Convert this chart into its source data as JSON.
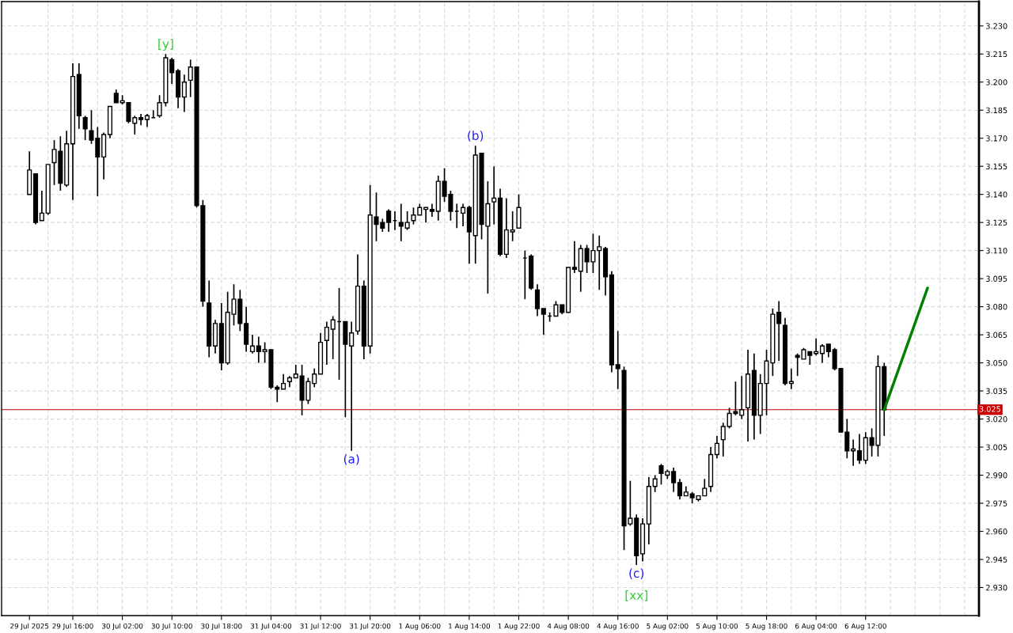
{
  "chart_data": {
    "type": "candlestick",
    "categories": [
      "29 Jul 2025",
      null,
      null,
      null,
      null,
      null,
      null,
      "29 Jul 16:00",
      null,
      null,
      null,
      null,
      null,
      null,
      null,
      "30 Jul 02:00",
      null,
      null,
      null,
      null,
      null,
      null,
      null,
      "30 Jul 10:00",
      null,
      null,
      null,
      null,
      null,
      null,
      null,
      "30 Jul 18:00",
      null,
      null,
      null,
      null,
      null,
      null,
      null,
      "31 Jul 04:00",
      null,
      null,
      null,
      null,
      null,
      null,
      null,
      "31 Jul 12:00",
      null,
      null,
      null,
      null,
      null,
      null,
      null,
      "31 Jul 20:00",
      null,
      null,
      null,
      null,
      null,
      null,
      null,
      "1 Aug 06:00",
      null,
      null,
      null,
      null,
      null,
      null,
      null,
      "1 Aug 14:00",
      null,
      null,
      null,
      null,
      null,
      null,
      null,
      "1 Aug 22:00",
      null,
      null,
      null,
      null,
      null,
      null,
      null,
      "4 Aug 08:00",
      null,
      null,
      null,
      null,
      null,
      null,
      null,
      "4 Aug 16:00",
      null,
      null,
      null,
      null,
      null,
      null,
      null,
      "5 Aug 02:00",
      null,
      null,
      null,
      null,
      null,
      null,
      null,
      "5 Aug 10:00",
      null,
      null,
      null,
      null,
      null,
      null,
      null,
      "5 Aug 18:00",
      null,
      null,
      null,
      null,
      null,
      null,
      null,
      "6 Aug 04:00",
      null,
      null,
      null,
      null,
      null,
      null,
      null,
      "6 Aug 12:00",
      null,
      null,
      null,
      null,
      null,
      null,
      null,
      null,
      null,
      null,
      null,
      null,
      null,
      null,
      null,
      null,
      null,
      null
    ],
    "ohlc": [
      [
        3.14,
        3.163,
        3.14,
        3.153
      ],
      [
        3.151,
        3.151,
        3.124,
        3.125
      ],
      [
        3.126,
        3.142,
        3.126,
        3.13
      ],
      [
        3.13,
        3.156,
        3.129,
        3.156
      ],
      [
        3.157,
        3.169,
        3.145,
        3.164
      ],
      [
        3.163,
        3.171,
        3.142,
        3.146
      ],
      [
        3.145,
        3.174,
        3.144,
        3.167
      ],
      [
        3.167,
        3.21,
        3.137,
        3.203
      ],
      [
        3.204,
        3.21,
        3.175,
        3.182
      ],
      [
        3.181,
        3.182,
        3.169,
        3.175
      ],
      [
        3.174,
        3.185,
        3.167,
        3.169
      ],
      [
        3.17,
        3.176,
        3.139,
        3.16
      ],
      [
        3.16,
        3.173,
        3.148,
        3.172
      ],
      [
        3.172,
        3.187,
        3.17,
        3.187
      ],
      [
        3.194,
        3.196,
        3.189,
        3.189
      ],
      [
        3.189,
        3.193,
        3.188,
        3.19
      ],
      [
        3.189,
        3.189,
        3.178,
        3.179
      ],
      [
        3.178,
        3.182,
        3.172,
        3.181
      ],
      [
        3.181,
        3.183,
        3.177,
        3.18
      ],
      [
        3.18,
        3.183,
        3.176,
        3.182
      ],
      [
        3.181,
        3.185,
        3.181,
        3.181
      ],
      [
        3.182,
        3.193,
        3.181,
        3.189
      ],
      [
        3.189,
        3.215,
        3.187,
        3.213
      ],
      [
        3.212,
        3.213,
        3.199,
        3.205
      ],
      [
        3.206,
        3.207,
        3.186,
        3.192
      ],
      [
        3.192,
        3.204,
        3.184,
        3.2
      ],
      [
        3.201,
        3.212,
        3.192,
        3.208
      ],
      [
        3.208,
        3.208,
        3.133,
        3.134
      ],
      [
        3.134,
        3.137,
        3.08,
        3.083
      ],
      [
        3.082,
        3.094,
        3.053,
        3.059
      ],
      [
        3.059,
        3.073,
        3.055,
        3.071
      ],
      [
        3.071,
        3.082,
        3.046,
        3.05
      ],
      [
        3.05,
        3.088,
        3.049,
        3.077
      ],
      [
        3.076,
        3.092,
        3.07,
        3.084
      ],
      [
        3.084,
        3.089,
        3.067,
        3.071
      ],
      [
        3.071,
        3.08,
        3.056,
        3.06
      ],
      [
        3.056,
        3.065,
        3.055,
        3.059
      ],
      [
        3.059,
        3.064,
        3.05,
        3.056
      ],
      [
        3.056,
        3.061,
        3.05,
        3.057
      ],
      [
        3.057,
        3.057,
        3.036,
        3.037
      ],
      [
        3.037,
        3.038,
        3.029,
        3.036
      ],
      [
        3.036,
        3.044,
        3.036,
        3.039
      ],
      [
        3.04,
        3.043,
        3.037,
        3.042
      ],
      [
        3.042,
        3.049,
        3.042,
        3.044
      ],
      [
        3.043,
        3.049,
        3.022,
        3.03
      ],
      [
        3.03,
        3.042,
        3.028,
        3.04
      ],
      [
        3.039,
        3.047,
        3.037,
        3.044
      ],
      [
        3.044,
        3.066,
        3.044,
        3.061
      ],
      [
        3.062,
        3.072,
        3.049,
        3.069
      ],
      [
        3.068,
        3.075,
        3.052,
        3.073
      ],
      [
        3.072,
        3.09,
        3.041,
        3.072
      ],
      [
        3.072,
        3.072,
        3.021,
        3.06
      ],
      [
        3.059,
        3.072,
        3.003,
        3.066
      ],
      [
        3.067,
        3.108,
        3.065,
        3.091
      ],
      [
        3.091,
        3.094,
        3.052,
        3.059
      ],
      [
        3.059,
        3.145,
        3.055,
        3.129
      ],
      [
        3.128,
        3.141,
        3.115,
        3.124
      ],
      [
        3.125,
        3.127,
        3.12,
        3.122
      ],
      [
        3.131,
        3.132,
        3.12,
        3.125
      ],
      [
        3.126,
        3.131,
        3.121,
        3.126
      ],
      [
        3.125,
        3.135,
        3.115,
        3.123
      ],
      [
        3.122,
        3.131,
        3.121,
        3.125
      ],
      [
        3.126,
        3.133,
        3.124,
        3.129
      ],
      [
        3.129,
        3.135,
        3.129,
        3.133
      ],
      [
        3.132,
        3.133,
        3.125,
        3.133
      ],
      [
        3.132,
        3.135,
        3.128,
        3.131
      ],
      [
        3.131,
        3.15,
        3.126,
        3.147
      ],
      [
        3.147,
        3.154,
        3.136,
        3.139
      ],
      [
        3.14,
        3.142,
        3.126,
        3.131
      ],
      [
        3.131,
        3.135,
        3.122,
        3.131
      ],
      [
        3.13,
        3.135,
        3.123,
        3.133
      ],
      [
        3.133,
        3.134,
        3.103,
        3.12
      ],
      [
        3.118,
        3.166,
        3.103,
        3.161
      ],
      [
        3.162,
        3.162,
        3.116,
        3.124
      ],
      [
        3.123,
        3.147,
        3.087,
        3.135
      ],
      [
        3.136,
        3.155,
        3.124,
        3.138
      ],
      [
        3.138,
        3.143,
        3.107,
        3.108
      ],
      [
        3.108,
        3.138,
        3.106,
        3.121
      ],
      [
        3.12,
        3.131,
        3.115,
        3.121
      ],
      [
        3.122,
        3.14,
        3.122,
        3.133
      ],
      [
        3.106,
        3.11,
        3.084,
        3.106
      ],
      [
        3.107,
        3.108,
        3.089,
        3.09
      ],
      [
        3.089,
        3.092,
        3.075,
        3.079
      ],
      [
        3.079,
        3.079,
        3.065,
        3.076
      ],
      [
        3.075,
        3.077,
        3.072,
        3.075
      ],
      [
        3.075,
        3.083,
        3.075,
        3.081
      ],
      [
        3.081,
        3.081,
        3.076,
        3.077
      ],
      [
        3.077,
        3.101,
        3.077,
        3.101
      ],
      [
        3.101,
        3.115,
        3.098,
        3.1
      ],
      [
        3.099,
        3.113,
        3.088,
        3.111
      ],
      [
        3.111,
        3.113,
        3.098,
        3.104
      ],
      [
        3.104,
        3.119,
        3.098,
        3.11
      ],
      [
        3.11,
        3.118,
        3.089,
        3.112
      ],
      [
        3.111,
        3.112,
        3.086,
        3.096
      ],
      [
        3.097,
        3.099,
        3.045,
        3.049
      ],
      [
        3.049,
        3.067,
        3.036,
        3.047
      ],
      [
        3.046,
        3.048,
        2.95,
        2.963
      ],
      [
        2.964,
        2.987,
        2.963,
        2.967
      ],
      [
        2.967,
        2.969,
        2.942,
        2.947
      ],
      [
        2.948,
        2.967,
        2.944,
        2.964
      ],
      [
        2.964,
        2.989,
        2.953,
        2.984
      ],
      [
        2.984,
        2.99,
        2.981,
        2.988
      ],
      [
        2.995,
        2.996,
        2.985,
        2.991
      ],
      [
        2.99,
        2.993,
        2.988,
        2.992
      ],
      [
        2.992,
        2.994,
        2.981,
        2.986
      ],
      [
        2.986,
        2.988,
        2.977,
        2.979
      ],
      [
        2.979,
        2.984,
        2.979,
        2.981
      ],
      [
        2.98,
        2.981,
        2.975,
        2.978
      ],
      [
        2.977,
        2.979,
        2.976,
        2.979
      ],
      [
        2.979,
        2.988,
        2.979,
        2.983
      ],
      [
        2.984,
        3.005,
        2.981,
        3.001
      ],
      [
        3.001,
        3.011,
        2.999,
        3.007
      ],
      [
        3.009,
        3.018,
        3.0,
        3.016
      ],
      [
        3.016,
        3.026,
        3.015,
        3.023
      ],
      [
        3.024,
        3.04,
        3.022,
        3.023
      ],
      [
        3.022,
        3.043,
        3.02,
        3.025
      ],
      [
        3.026,
        3.057,
        3.008,
        3.044
      ],
      [
        3.046,
        3.055,
        3.009,
        3.022
      ],
      [
        3.022,
        3.044,
        3.012,
        3.039
      ],
      [
        3.039,
        3.057,
        3.022,
        3.051
      ],
      [
        3.05,
        3.079,
        3.043,
        3.076
      ],
      [
        3.077,
        3.083,
        3.051,
        3.071
      ],
      [
        3.07,
        3.074,
        3.038,
        3.039
      ],
      [
        3.039,
        3.047,
        3.036,
        3.04
      ],
      [
        3.054,
        3.055,
        3.043,
        3.053
      ],
      [
        3.052,
        3.058,
        3.052,
        3.057
      ],
      [
        3.056,
        3.056,
        3.049,
        3.054
      ],
      [
        3.055,
        3.063,
        3.054,
        3.056
      ],
      [
        3.055,
        3.06,
        3.05,
        3.059
      ],
      [
        3.06,
        3.06,
        3.053,
        3.056
      ],
      [
        3.057,
        3.058,
        3.046,
        3.047
      ],
      [
        3.047,
        3.047,
        3.013,
        3.013
      ],
      [
        3.013,
        3.02,
        2.999,
        3.003
      ],
      [
        3.003,
        3.009,
        2.995,
        3.004
      ],
      [
        3.003,
        3.012,
        2.996,
        2.998
      ],
      [
        2.998,
        3.013,
        2.996,
        3.01
      ],
      [
        3.01,
        3.015,
        3.0,
        3.006
      ],
      [
        3.006,
        3.054,
        3.0,
        3.048
      ],
      [
        3.048,
        3.05,
        3.011,
        3.025
      ],
      null,
      null,
      null,
      null,
      null,
      null,
      null,
      null,
      null,
      null,
      null,
      null,
      null,
      null,
      null
    ],
    "series": [
      {
        "type": "line",
        "color": "#008000",
        "values": [
          null,
          null,
          null,
          null,
          null,
          null,
          null,
          null,
          null,
          null,
          null,
          null,
          null,
          null,
          null,
          null,
          null,
          null,
          null,
          null,
          null,
          null,
          null,
          null,
          null,
          null,
          null,
          null,
          null,
          null,
          null,
          null,
          null,
          null,
          null,
          null,
          null,
          null,
          null,
          null,
          null,
          null,
          null,
          null,
          null,
          null,
          null,
          null,
          null,
          null,
          null,
          null,
          null,
          null,
          null,
          null,
          null,
          null,
          null,
          null,
          null,
          null,
          null,
          null,
          null,
          null,
          null,
          null,
          null,
          null,
          null,
          null,
          null,
          null,
          null,
          null,
          null,
          null,
          null,
          null,
          null,
          null,
          null,
          null,
          null,
          null,
          null,
          null,
          null,
          null,
          null,
          null,
          null,
          null,
          null,
          null,
          null,
          null,
          null,
          null,
          null,
          null,
          null,
          null,
          null,
          null,
          null,
          null,
          null,
          null,
          null,
          null,
          null,
          null,
          null,
          null,
          null,
          null,
          null,
          null,
          null,
          null,
          null,
          null,
          null,
          null,
          null,
          null,
          null,
          null,
          null,
          null,
          null,
          null,
          null,
          null,
          null,
          null,
          3.025,
          null,
          null,
          null,
          null,
          null,
          null,
          3.09,
          null,
          null,
          null,
          null,
          null,
          null,
          null,
          null
        ]
      }
    ],
    "ylim": [
      2.915,
      3.243
    ],
    "yticks": [
      {
        "value": 2.93,
        "label": "2.930"
      },
      2.945,
      {
        "value": 2.96,
        "label": "2.960"
      },
      2.975,
      {
        "value": 2.99,
        "label": "2.990"
      },
      3.005,
      {
        "value": 3.02,
        "label": "3.020"
      },
      3.035,
      {
        "value": 3.05,
        "label": "3.050"
      },
      3.065,
      {
        "value": 3.08,
        "label": "3.080"
      },
      3.095,
      {
        "value": 3.11,
        "label": "3.110"
      },
      3.125,
      {
        "value": 3.14,
        "label": "3.140"
      },
      3.155,
      {
        "value": 3.17,
        "label": "3.170"
      },
      3.185,
      {
        "value": 3.2,
        "label": "3.200"
      },
      3.215,
      {
        "value": 3.23,
        "label": "3.230"
      }
    ],
    "grid": true,
    "ref_lines": [
      {
        "axis": "y",
        "value": 3.025,
        "label": "3.025",
        "color": "#c80000"
      }
    ],
    "annotations": [
      {
        "text": "[y]",
        "y": 3.215
      },
      {
        "text": "(a)",
        "y": 3.003
      },
      {
        "text": "(b)",
        "y": 3.166
      },
      {
        "text": "(c)",
        "y": 2.942
      },
      {
        "text": "[xx]",
        "y": 2.942
      }
    ]
  }
}
